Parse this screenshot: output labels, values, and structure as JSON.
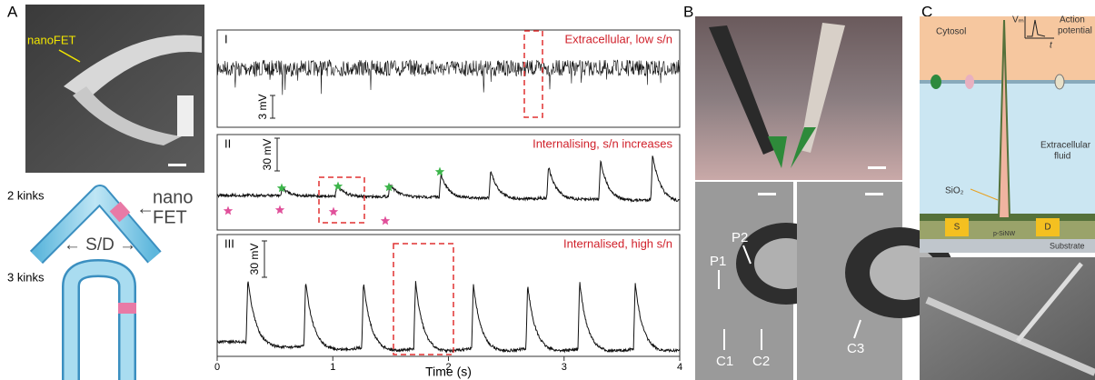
{
  "panel_a": {
    "label": "A",
    "nanofet_label": "nanoFET",
    "kinks2": "2 kinks",
    "nano": "nano",
    "fet": "FET",
    "sd": "← S/D →",
    "kinks3": "3 kinks",
    "traces": [
      {
        "numeral": "I",
        "caption": "Extracellular, low s/n",
        "scale": "3 mV"
      },
      {
        "numeral": "II",
        "caption": "Internalising, s/n increases",
        "scale": "30 mV"
      },
      {
        "numeral": "III",
        "caption": "Internalised, high  s/n",
        "scale": "30 mV"
      }
    ],
    "x_axis": {
      "lim": [
        0,
        4
      ],
      "ticks": [
        0,
        1,
        2,
        3,
        4
      ],
      "label": "Time (s)"
    }
  },
  "panel_b": {
    "label": "B",
    "p1": "P1",
    "p2": "P2",
    "c1": "C1",
    "c2": "C2",
    "c3": "C3"
  },
  "panel_c": {
    "label": "C",
    "cytosol": "Cytosol",
    "vm": "Vₘ",
    "t": "t",
    "action": "Action",
    "potential": "potential",
    "extra": "Extracellular",
    "fluid": "fluid",
    "sio2": "SiO₂",
    "s": "S",
    "d": "D",
    "nw": "p-SiNW",
    "substrate": "Substrate"
  }
}
